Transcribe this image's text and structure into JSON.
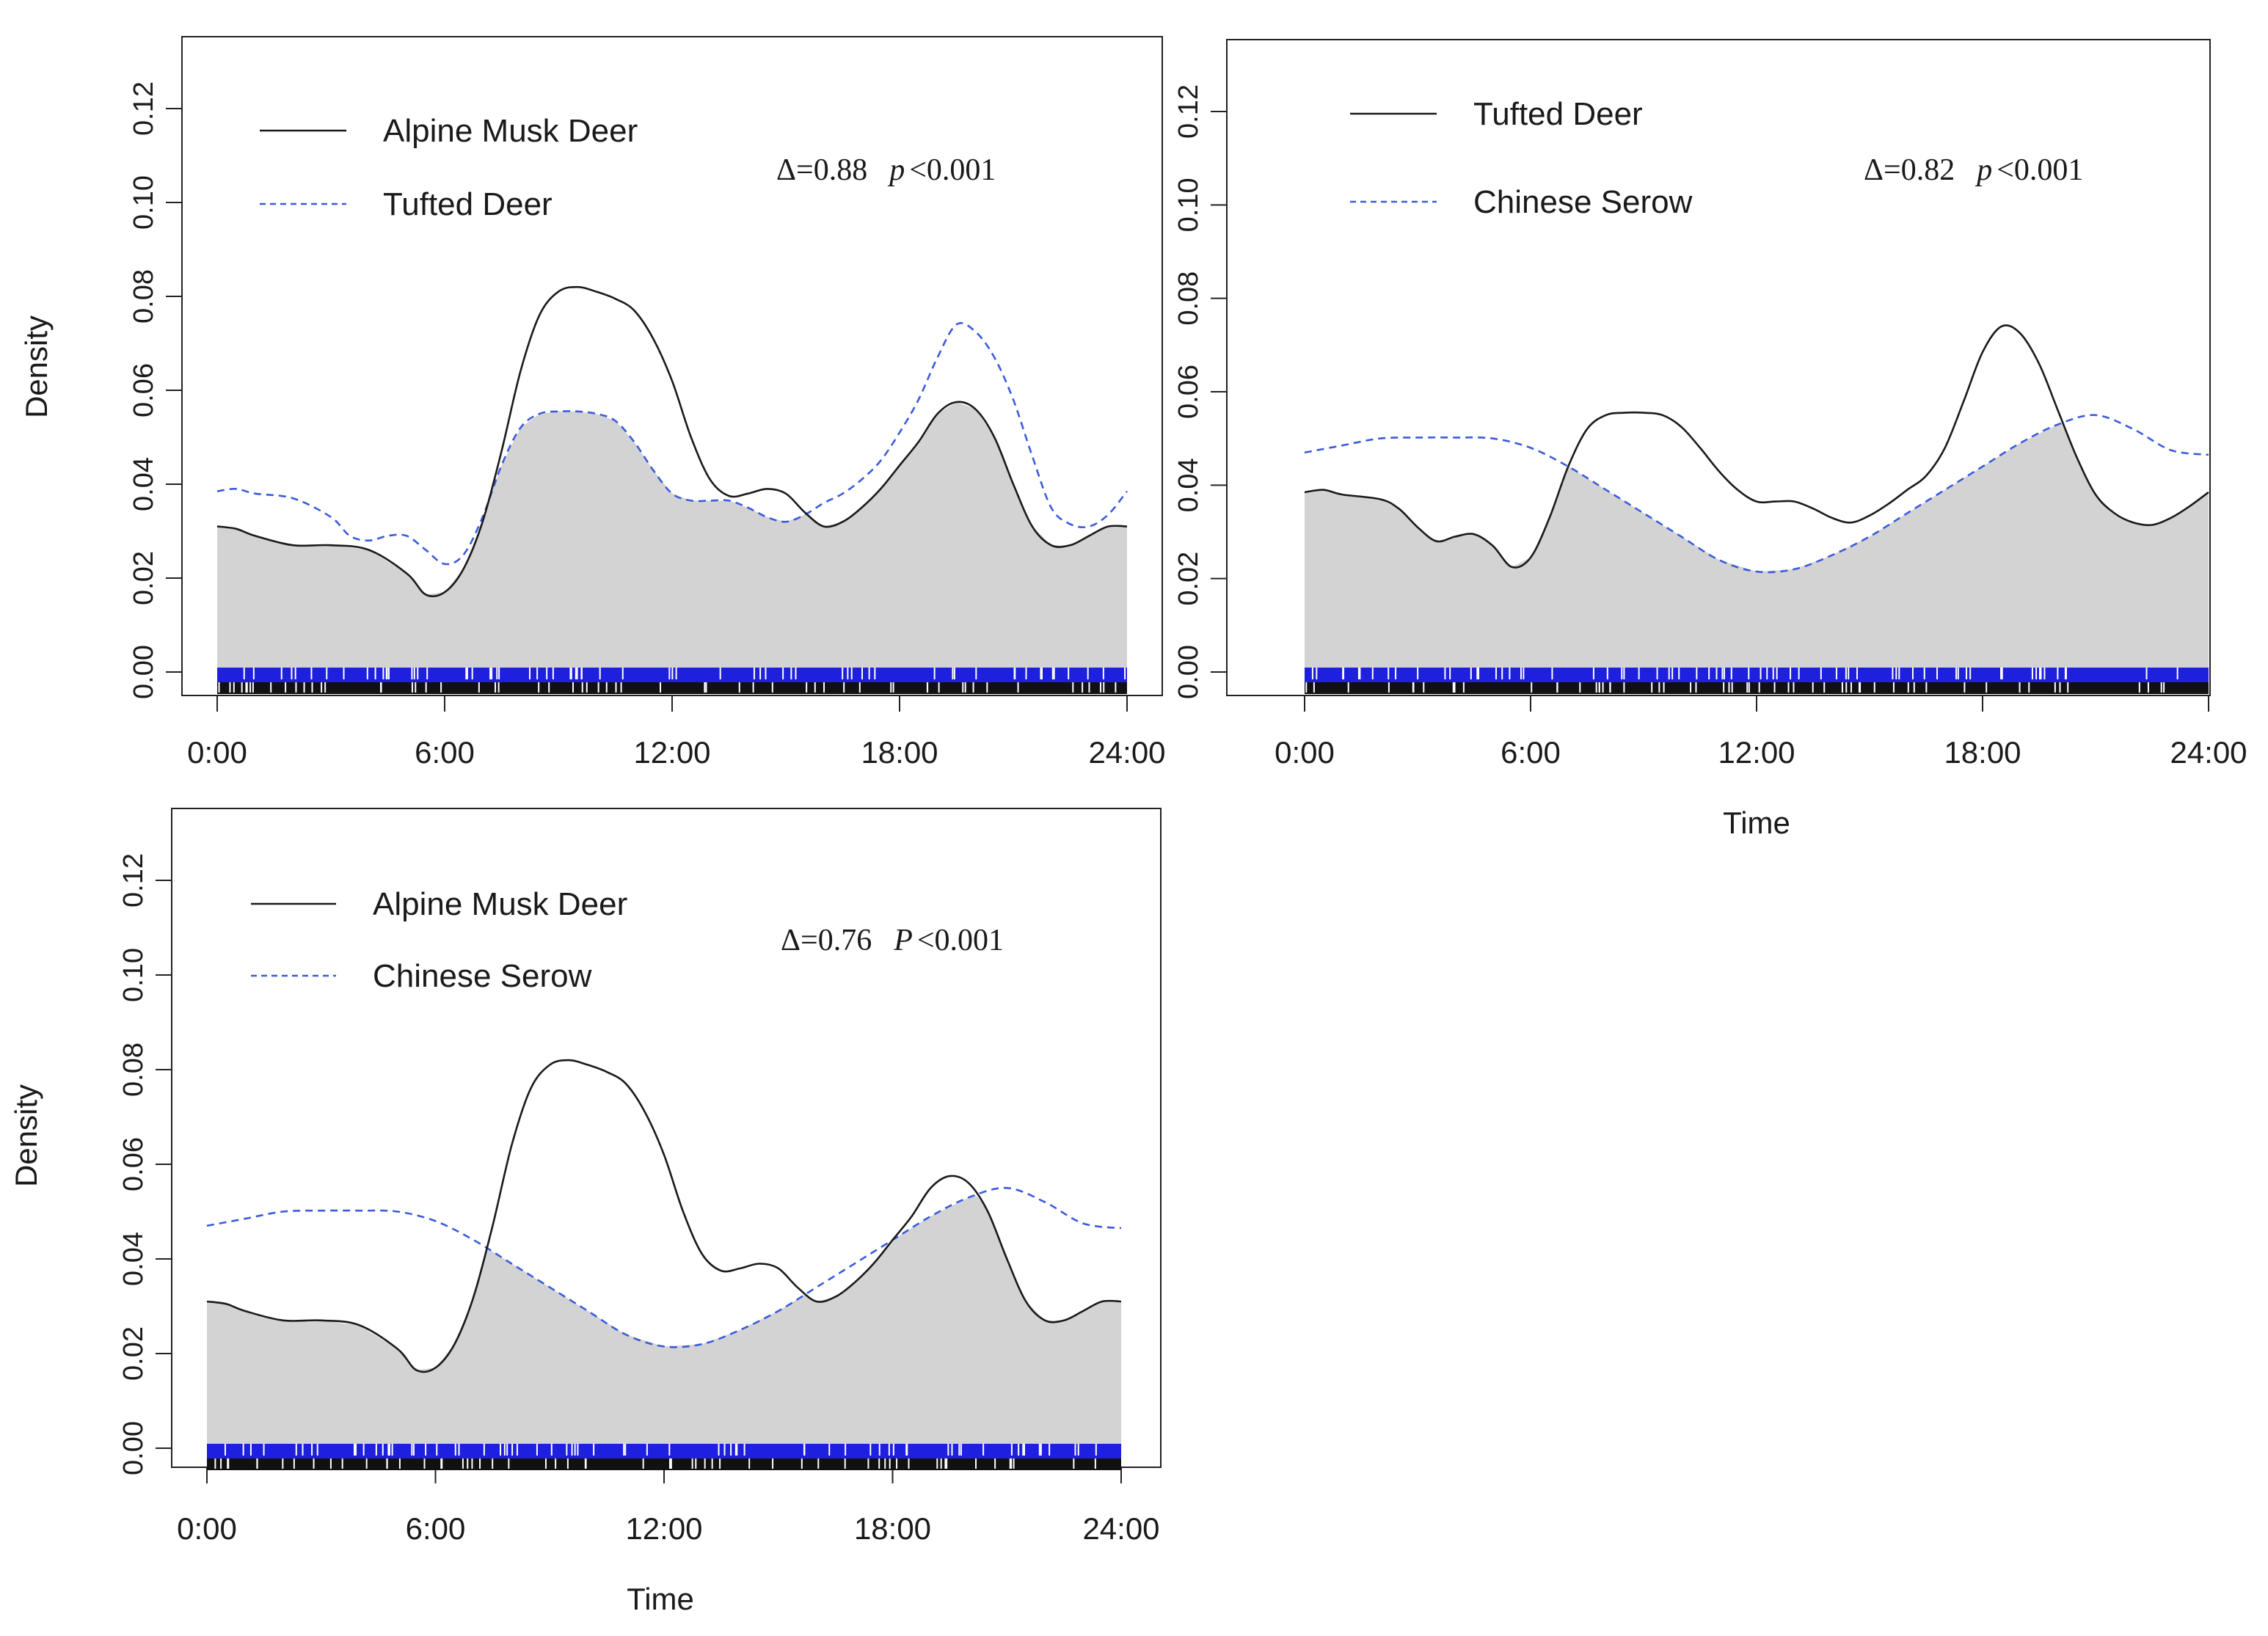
{
  "chart_data": [
    {
      "type": "line",
      "panel": "top-left",
      "title": "",
      "xlabel": "",
      "ylabel": "Density",
      "xlim": [
        0,
        24
      ],
      "ylim": [
        0,
        0.12
      ],
      "x_ticks": [
        "0:00",
        "6:00",
        "12:00",
        "18:00",
        "24:00"
      ],
      "y_ticks": [
        "0.00",
        "0.02",
        "0.04",
        "0.06",
        "0.08",
        "0.10",
        "0.12"
      ],
      "legend": {
        "position": "top-left",
        "entries": [
          {
            "name": "Alpine Musk Deer",
            "style": "solid",
            "color": "#1a1a1a"
          },
          {
            "name": "Tufted Deer",
            "style": "dashed",
            "color": "#3b5bdb"
          }
        ]
      },
      "annotation": {
        "delta": "Δ=0.88",
        "p_label": "p",
        "p_value": "<0.001"
      },
      "overlap_fill": "#d3d3d3",
      "series": [
        {
          "name": "Alpine Musk Deer",
          "style": "solid",
          "color": "#1a1a1a",
          "x": [
            0,
            0.5,
            1,
            2,
            3,
            4,
            5,
            5.5,
            6,
            6.5,
            7,
            7.5,
            8,
            8.5,
            9,
            9.5,
            10,
            10.5,
            11,
            11.5,
            12,
            12.5,
            13,
            13.5,
            14,
            14.5,
            15,
            15.5,
            16,
            16.5,
            17,
            17.5,
            18,
            18.5,
            19,
            19.5,
            20,
            20.5,
            21,
            21.5,
            22,
            22.5,
            23,
            23.5,
            24
          ],
          "values": [
            0.031,
            0.0305,
            0.029,
            0.027,
            0.027,
            0.026,
            0.021,
            0.0165,
            0.017,
            0.022,
            0.032,
            0.047,
            0.064,
            0.076,
            0.081,
            0.082,
            0.081,
            0.0795,
            0.077,
            0.071,
            0.062,
            0.05,
            0.041,
            0.0375,
            0.038,
            0.039,
            0.038,
            0.034,
            0.031,
            0.032,
            0.035,
            0.039,
            0.044,
            0.049,
            0.055,
            0.0575,
            0.056,
            0.05,
            0.04,
            0.031,
            0.027,
            0.027,
            0.029,
            0.031,
            0.031
          ]
        },
        {
          "name": "Tufted Deer",
          "style": "dashed",
          "color": "#3b5bdb",
          "x": [
            0,
            0.5,
            1,
            2,
            3,
            3.5,
            4,
            4.5,
            5,
            5.5,
            6,
            6.5,
            7,
            7.5,
            8,
            8.5,
            9,
            9.5,
            10,
            10.5,
            11,
            11.5,
            12,
            12.5,
            13,
            13.5,
            14,
            14.5,
            15,
            15.5,
            16,
            16.5,
            17,
            17.5,
            18,
            18.5,
            19,
            19.5,
            20,
            20.5,
            21,
            21.5,
            22,
            22.5,
            23,
            23.5,
            24
          ],
          "values": [
            0.0385,
            0.039,
            0.038,
            0.037,
            0.033,
            0.029,
            0.028,
            0.029,
            0.029,
            0.026,
            0.023,
            0.025,
            0.033,
            0.044,
            0.052,
            0.055,
            0.0555,
            0.0555,
            0.055,
            0.0535,
            0.049,
            0.043,
            0.038,
            0.0365,
            0.0365,
            0.0365,
            0.035,
            0.033,
            0.032,
            0.0335,
            0.036,
            0.038,
            0.041,
            0.045,
            0.051,
            0.058,
            0.067,
            0.074,
            0.0725,
            0.067,
            0.058,
            0.046,
            0.035,
            0.0315,
            0.031,
            0.0335,
            0.0385
          ]
        }
      ]
    },
    {
      "type": "line",
      "panel": "top-right",
      "title": "",
      "xlabel": "Time",
      "ylabel": "",
      "xlim": [
        0,
        24
      ],
      "ylim": [
        0,
        0.12
      ],
      "x_ticks": [
        "0:00",
        "6:00",
        "12:00",
        "18:00",
        "24:00"
      ],
      "y_ticks": [
        "0.00",
        "0.02",
        "0.04",
        "0.06",
        "0.08",
        "0.10",
        "0.12"
      ],
      "legend": {
        "position": "top-left",
        "entries": [
          {
            "name": "Tufted Deer",
            "style": "solid",
            "color": "#1a1a1a"
          },
          {
            "name": "Chinese Serow",
            "style": "dashed",
            "color": "#3b5bdb"
          }
        ]
      },
      "annotation": {
        "delta": "Δ=0.82",
        "p_label": "p",
        "p_value": "<0.001"
      },
      "overlap_fill": "#d3d3d3",
      "series": [
        {
          "name": "Tufted Deer",
          "style": "solid",
          "color": "#1a1a1a",
          "x": [
            0,
            0.5,
            1,
            2,
            2.5,
            3,
            3.5,
            4,
            4.5,
            5,
            5.5,
            6,
            6.5,
            7,
            7.5,
            8,
            8.5,
            9,
            9.5,
            10,
            10.5,
            11,
            11.5,
            12,
            12.5,
            13,
            13.5,
            14,
            14.5,
            15,
            15.5,
            16,
            16.5,
            17,
            17.5,
            18,
            18.5,
            19,
            19.5,
            20,
            20.5,
            21,
            21.5,
            22,
            22.5,
            23,
            23.5,
            24
          ],
          "values": [
            0.0385,
            0.039,
            0.038,
            0.037,
            0.035,
            0.031,
            0.028,
            0.029,
            0.0295,
            0.027,
            0.0225,
            0.0245,
            0.033,
            0.044,
            0.052,
            0.055,
            0.0555,
            0.0555,
            0.055,
            0.0525,
            0.048,
            0.043,
            0.039,
            0.0365,
            0.0365,
            0.0365,
            0.035,
            0.033,
            0.032,
            0.0335,
            0.036,
            0.039,
            0.042,
            0.048,
            0.058,
            0.0685,
            0.074,
            0.0725,
            0.066,
            0.056,
            0.046,
            0.038,
            0.034,
            0.032,
            0.0315,
            0.033,
            0.0355,
            0.0385
          ]
        },
        {
          "name": "Chinese Serow",
          "style": "dashed",
          "color": "#3b5bdb",
          "x": [
            0,
            1,
            2,
            3,
            4,
            5,
            6,
            7,
            8,
            9,
            10,
            11,
            12,
            13,
            14,
            15,
            16,
            17,
            18,
            19,
            20,
            21,
            22,
            23,
            24
          ],
          "values": [
            0.047,
            0.0485,
            0.05,
            0.0502,
            0.0502,
            0.05,
            0.048,
            0.044,
            0.039,
            0.034,
            0.029,
            0.024,
            0.0215,
            0.022,
            0.025,
            0.029,
            0.034,
            0.039,
            0.044,
            0.049,
            0.053,
            0.055,
            0.052,
            0.0475,
            0.0465
          ]
        }
      ]
    },
    {
      "type": "line",
      "panel": "bottom-left",
      "title": "",
      "xlabel": "Time",
      "ylabel": "Density",
      "xlim": [
        0,
        24
      ],
      "ylim": [
        0,
        0.12
      ],
      "x_ticks": [
        "0:00",
        "6:00",
        "12:00",
        "18:00",
        "24:00"
      ],
      "y_ticks": [
        "0.00",
        "0.02",
        "0.04",
        "0.06",
        "0.08",
        "0.10",
        "0.12"
      ],
      "legend": {
        "position": "top-left",
        "entries": [
          {
            "name": "Alpine Musk Deer",
            "style": "solid",
            "color": "#1a1a1a"
          },
          {
            "name": "Chinese Serow",
            "style": "dashed",
            "color": "#3b5bdb"
          }
        ]
      },
      "annotation": {
        "delta": "Δ=0.76",
        "p_label": "P",
        "p_value": "<0.001"
      },
      "overlap_fill": "#d3d3d3",
      "series": [
        {
          "name": "Alpine Musk Deer",
          "style": "solid",
          "color": "#1a1a1a",
          "x": [
            0,
            0.5,
            1,
            2,
            3,
            4,
            5,
            5.5,
            6,
            6.5,
            7,
            7.5,
            8,
            8.5,
            9,
            9.5,
            10,
            10.5,
            11,
            11.5,
            12,
            12.5,
            13,
            13.5,
            14,
            14.5,
            15,
            15.5,
            16,
            16.5,
            17,
            17.5,
            18,
            18.5,
            19,
            19.5,
            20,
            20.5,
            21,
            21.5,
            22,
            22.5,
            23,
            23.5,
            24
          ],
          "values": [
            0.031,
            0.0305,
            0.029,
            0.027,
            0.027,
            0.026,
            0.021,
            0.0165,
            0.017,
            0.022,
            0.032,
            0.047,
            0.064,
            0.076,
            0.081,
            0.082,
            0.081,
            0.0795,
            0.077,
            0.071,
            0.062,
            0.05,
            0.041,
            0.0375,
            0.038,
            0.039,
            0.038,
            0.034,
            0.031,
            0.032,
            0.035,
            0.039,
            0.044,
            0.049,
            0.055,
            0.0575,
            0.056,
            0.05,
            0.04,
            0.031,
            0.027,
            0.027,
            0.029,
            0.031,
            0.031
          ]
        },
        {
          "name": "Chinese Serow",
          "style": "dashed",
          "color": "#3b5bdb",
          "x": [
            0,
            1,
            2,
            3,
            4,
            5,
            6,
            7,
            8,
            9,
            10,
            11,
            12,
            13,
            14,
            15,
            16,
            17,
            18,
            19,
            20,
            21,
            22,
            23,
            24
          ],
          "values": [
            0.047,
            0.0485,
            0.05,
            0.0502,
            0.0502,
            0.05,
            0.048,
            0.044,
            0.039,
            0.034,
            0.029,
            0.024,
            0.0215,
            0.022,
            0.025,
            0.029,
            0.034,
            0.039,
            0.044,
            0.049,
            0.053,
            0.055,
            0.052,
            0.0475,
            0.0465
          ]
        }
      ]
    }
  ]
}
